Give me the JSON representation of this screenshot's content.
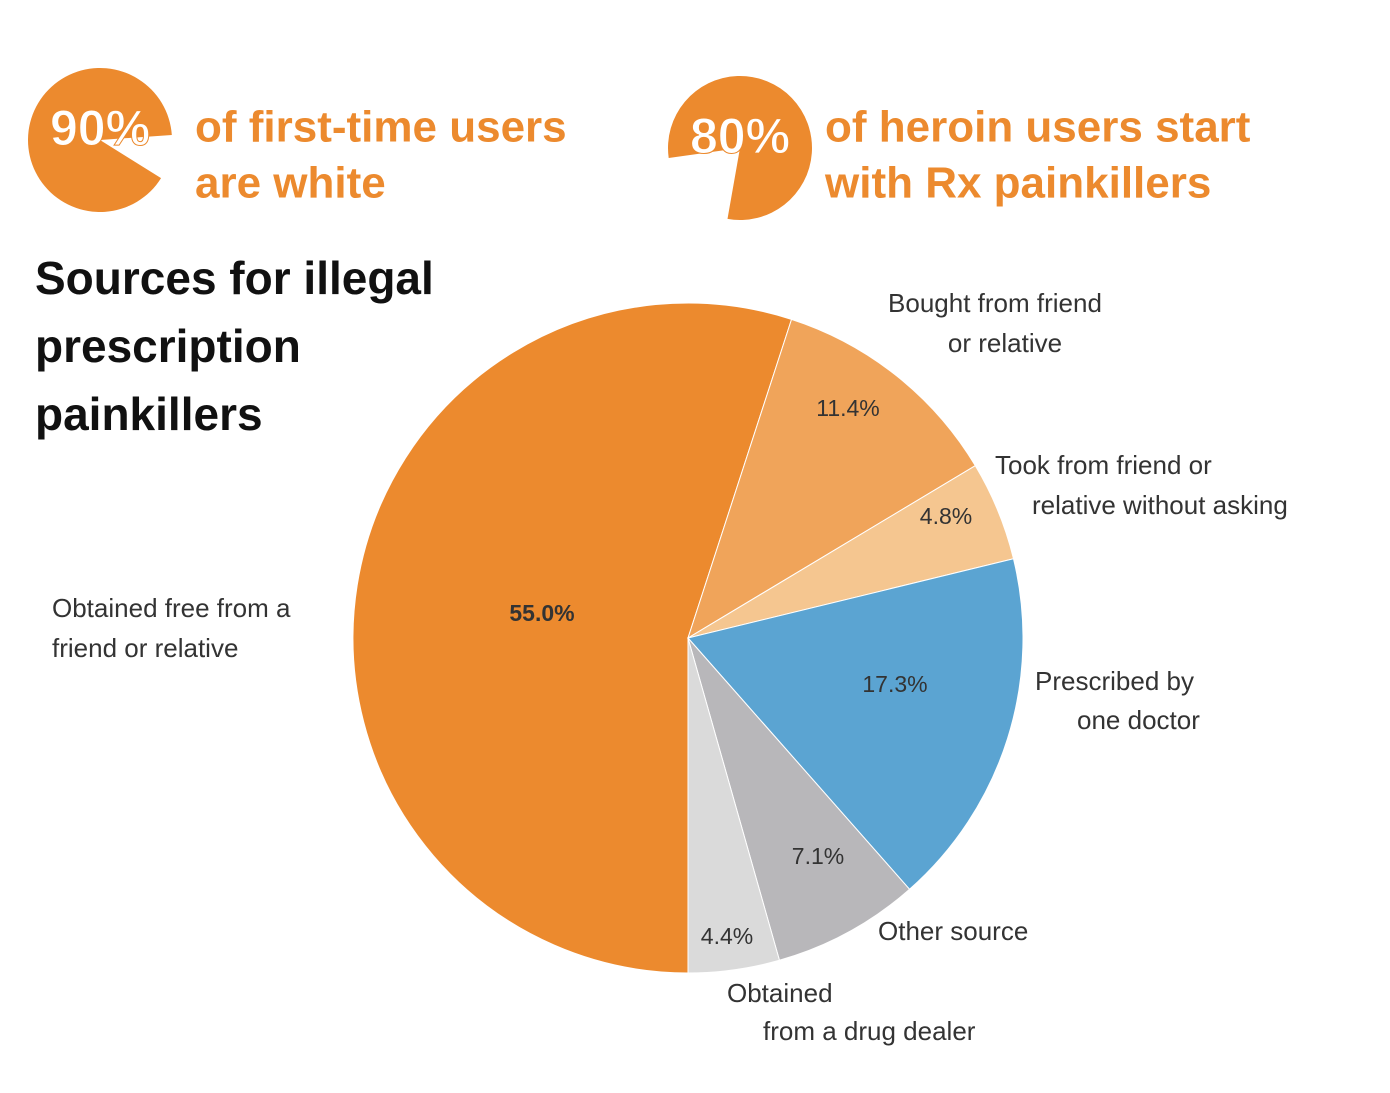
{
  "stats": [
    {
      "value": 90,
      "value_label": "90%",
      "lines": [
        "of first-time users",
        "are white"
      ],
      "color": "#ec8a2e"
    },
    {
      "value": 80,
      "value_label": "80%",
      "lines": [
        "of heroin users start",
        "with Rx painkillers"
      ],
      "color": "#ec8a2e"
    }
  ],
  "chart_data": {
    "type": "pie",
    "title": [
      "Sources for illegal",
      "prescription",
      "painkillers"
    ],
    "categories": [
      [
        "Obtained  free from a",
        "friend or relative"
      ],
      [
        "Bought from friend",
        "or relative"
      ],
      [
        "Took from friend or",
        "relative without asking"
      ],
      [
        "Prescribed by",
        "one doctor"
      ],
      [
        "Other source"
      ],
      [
        "Obtained",
        "from a drug dealer"
      ]
    ],
    "values": [
      55.0,
      11.4,
      4.8,
      17.3,
      7.1,
      4.4
    ],
    "value_labels": [
      "55.0%",
      "11.4%",
      "4.8%",
      "17.3%",
      "7.1%",
      "4.4%"
    ],
    "colors": [
      "#ec8a2e",
      "#f0a45a",
      "#f5c690",
      "#5ba4d2",
      "#b8b7ba",
      "#dadada"
    ]
  }
}
